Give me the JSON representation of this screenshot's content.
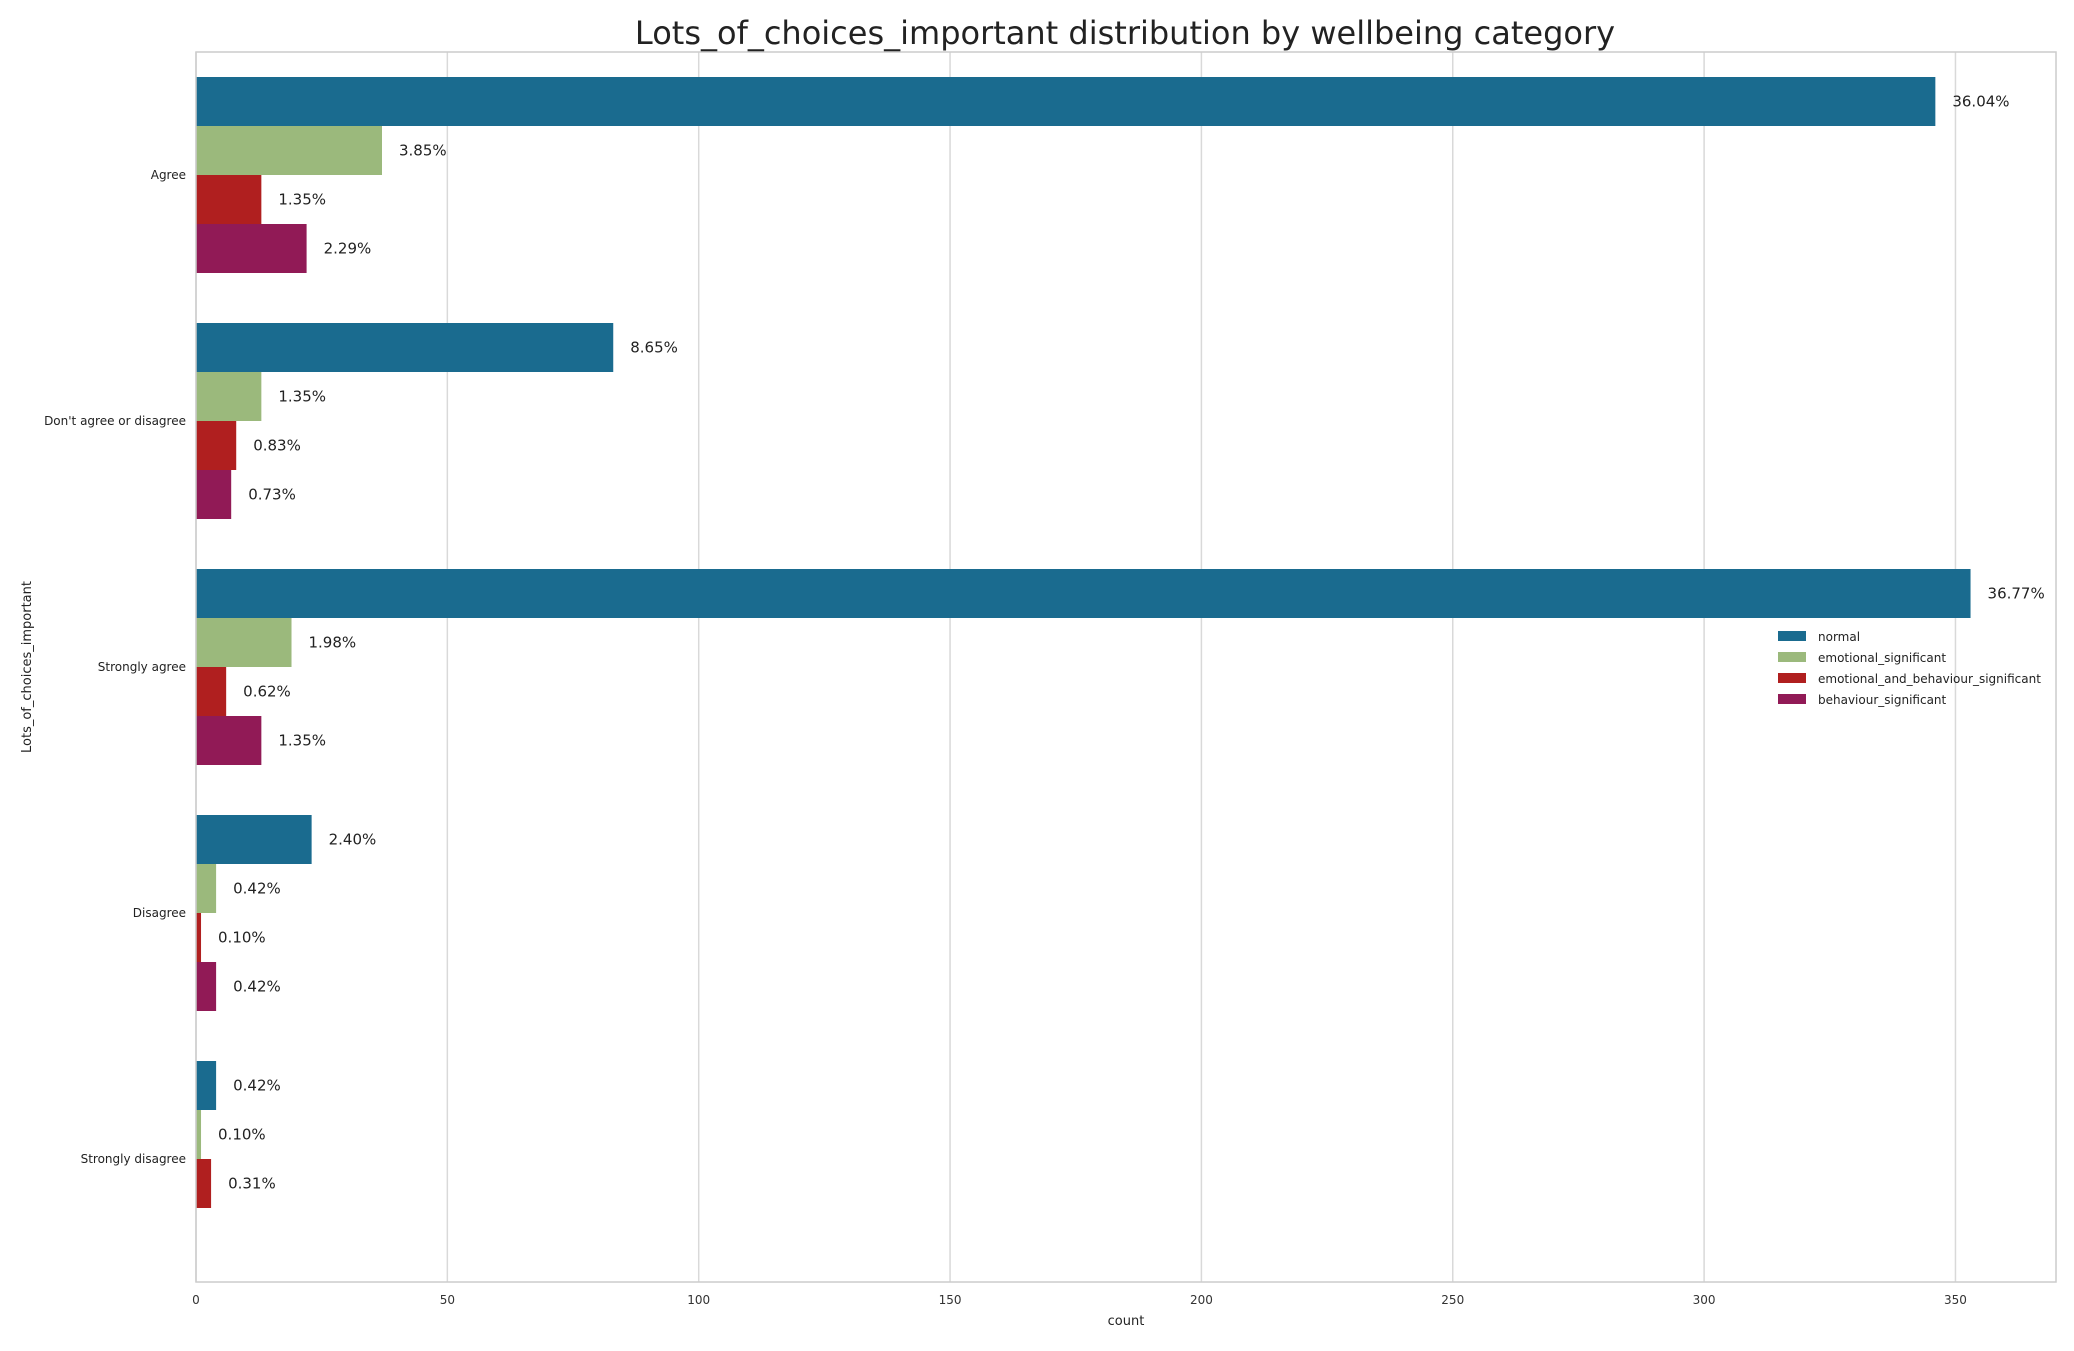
{
  "chart_data": {
    "type": "bar",
    "orientation": "horizontal",
    "title": "Lots_of_choices_important distribution by wellbeing category",
    "xlabel": "count",
    "ylabel": "Lots_of_choices_important",
    "xlim": [
      0,
      370
    ],
    "x_ticks": [
      "0",
      "50",
      "100",
      "150",
      "200",
      "250",
      "300",
      "350"
    ],
    "grid": true,
    "legend_position": "right",
    "categories": [
      "Agree",
      "Don't agree or disagree",
      "Strongly agree",
      "Disagree",
      "Strongly disagree"
    ],
    "series": [
      {
        "name": "normal",
        "color": "#1a6b8f",
        "values": [
          346,
          83,
          353,
          23,
          4
        ],
        "labels": [
          "36.04%",
          "8.65%",
          "36.77%",
          "2.40%",
          "0.42%"
        ]
      },
      {
        "name": "emotional_significant",
        "color": "#9bb97c",
        "values": [
          37,
          13,
          19,
          4,
          1
        ],
        "labels": [
          "3.85%",
          "1.35%",
          "1.98%",
          "0.42%",
          "0.10%"
        ]
      },
      {
        "name": "emotional_and_behaviour_significant",
        "color": "#b01f1f",
        "values": [
          13,
          8,
          6,
          1,
          3
        ],
        "labels": [
          "1.35%",
          "0.83%",
          "0.62%",
          "0.10%",
          "0.31%"
        ]
      },
      {
        "name": "behaviour_significant",
        "color": "#911a56",
        "values": [
          22,
          7,
          13,
          4,
          0
        ],
        "labels": [
          "2.29%",
          "0.73%",
          "1.35%",
          "0.42%",
          ""
        ]
      }
    ]
  }
}
